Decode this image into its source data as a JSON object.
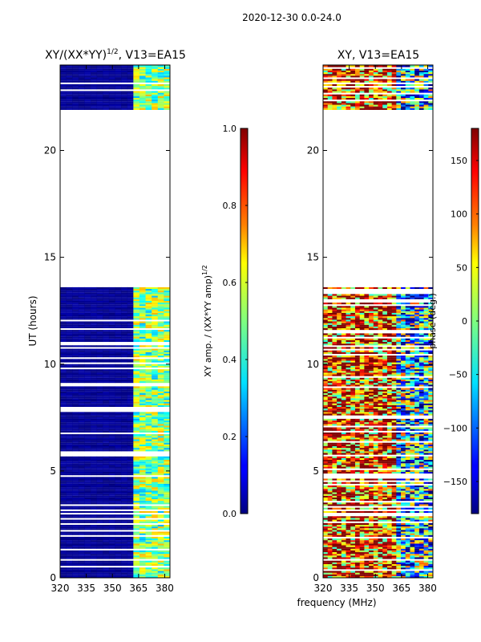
{
  "suptitle": "2020-12-30 0.0-24.0",
  "xlabel": "frequency (MHz)",
  "chart_data": [
    {
      "type": "heatmap",
      "title": "XY/(XX*YY)",
      "title_sup": "1/2",
      "title_tail": ", V13=EA15",
      "ylabel": "UT (hours)",
      "xlim": [
        320,
        383
      ],
      "ylim": [
        0,
        24
      ],
      "xticks": [
        320,
        335,
        350,
        365,
        380
      ],
      "yticks": [
        0,
        5,
        10,
        15,
        20
      ],
      "data_ranges_hours": [
        [
          0,
          13.6
        ],
        [
          21.9,
          24
        ]
      ],
      "colorbar": {
        "label": "XY amp. / (XX*YY amp)",
        "label_sup": "1/2",
        "range": [
          0.0,
          1.0
        ],
        "ticks": [
          "0.0",
          "0.2",
          "0.4",
          "0.6",
          "0.8",
          "1.0"
        ],
        "tick_values": [
          0.0,
          0.2,
          0.4,
          0.6,
          0.8,
          1.0
        ]
      }
    },
    {
      "type": "heatmap",
      "title": "XY, V13=EA15",
      "ylabel": "",
      "xlim": [
        320,
        383
      ],
      "ylim": [
        0,
        24
      ],
      "xticks": [
        320,
        335,
        350,
        365,
        380
      ],
      "yticks": [
        0,
        5,
        10,
        15,
        20
      ],
      "data_ranges_hours": [
        [
          0,
          13.6
        ],
        [
          21.9,
          24
        ]
      ],
      "colorbar": {
        "label": "phase (deg.)",
        "range": [
          -180,
          180
        ],
        "ticks": [
          "150",
          "100",
          "50",
          "0",
          "−50",
          "−100",
          "−150"
        ],
        "tick_values": [
          150,
          100,
          50,
          0,
          -50,
          -100,
          -150
        ]
      }
    }
  ]
}
